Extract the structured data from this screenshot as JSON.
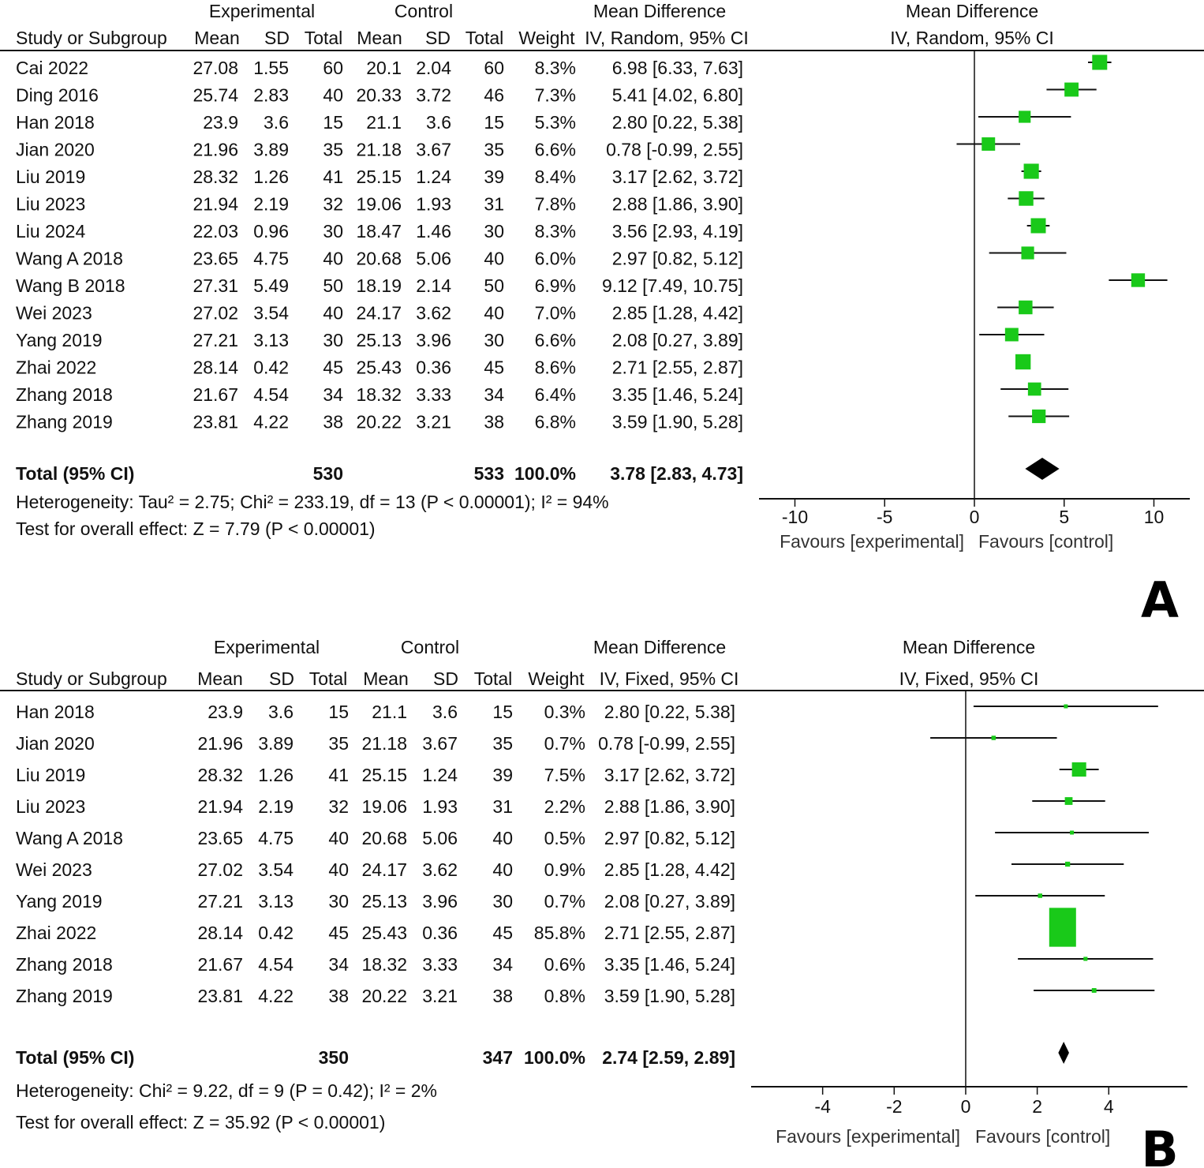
{
  "chart_data": [
    {
      "type": "forest",
      "panel_label": "A",
      "headers": {
        "group_experimental": "Experimental",
        "group_control": "Control",
        "md_group": "Mean Difference",
        "plot_title": "Mean Difference",
        "study": "Study or Subgroup",
        "mean": "Mean",
        "sd": "SD",
        "total": "Total",
        "weight": "Weight",
        "md_method": "IV, Random, 95% CI",
        "plot_method": "IV, Random, 95% CI"
      },
      "studies": [
        {
          "study": "Cai 2022",
          "e_mean": "27.08",
          "e_sd": "1.55",
          "e_total": "60",
          "c_mean": "20.1",
          "c_sd": "2.04",
          "c_total": "60",
          "weight": "8.3%",
          "md_text": "6.98 [6.33, 7.63]",
          "md": 6.98,
          "lo": 6.33,
          "hi": 7.63
        },
        {
          "study": "Ding 2016",
          "e_mean": "25.74",
          "e_sd": "2.83",
          "e_total": "40",
          "c_mean": "20.33",
          "c_sd": "3.72",
          "c_total": "46",
          "weight": "7.3%",
          "md_text": "5.41 [4.02, 6.80]",
          "md": 5.41,
          "lo": 4.02,
          "hi": 6.8
        },
        {
          "study": "Han 2018",
          "e_mean": "23.9",
          "e_sd": "3.6",
          "e_total": "15",
          "c_mean": "21.1",
          "c_sd": "3.6",
          "c_total": "15",
          "weight": "5.3%",
          "md_text": "2.80 [0.22, 5.38]",
          "md": 2.8,
          "lo": 0.22,
          "hi": 5.38
        },
        {
          "study": "Jian 2020",
          "e_mean": "21.96",
          "e_sd": "3.89",
          "e_total": "35",
          "c_mean": "21.18",
          "c_sd": "3.67",
          "c_total": "35",
          "weight": "6.6%",
          "md_text": "0.78 [-0.99, 2.55]",
          "md": 0.78,
          "lo": -0.99,
          "hi": 2.55
        },
        {
          "study": "Liu 2019",
          "e_mean": "28.32",
          "e_sd": "1.26",
          "e_total": "41",
          "c_mean": "25.15",
          "c_sd": "1.24",
          "c_total": "39",
          "weight": "8.4%",
          "md_text": "3.17 [2.62, 3.72]",
          "md": 3.17,
          "lo": 2.62,
          "hi": 3.72
        },
        {
          "study": "Liu 2023",
          "e_mean": "21.94",
          "e_sd": "2.19",
          "e_total": "32",
          "c_mean": "19.06",
          "c_sd": "1.93",
          "c_total": "31",
          "weight": "7.8%",
          "md_text": "2.88 [1.86, 3.90]",
          "md": 2.88,
          "lo": 1.86,
          "hi": 3.9
        },
        {
          "study": "Liu 2024",
          "e_mean": "22.03",
          "e_sd": "0.96",
          "e_total": "30",
          "c_mean": "18.47",
          "c_sd": "1.46",
          "c_total": "30",
          "weight": "8.3%",
          "md_text": "3.56 [2.93, 4.19]",
          "md": 3.56,
          "lo": 2.93,
          "hi": 4.19
        },
        {
          "study": "Wang A 2018",
          "e_mean": "23.65",
          "e_sd": "4.75",
          "e_total": "40",
          "c_mean": "20.68",
          "c_sd": "5.06",
          "c_total": "40",
          "weight": "6.0%",
          "md_text": "2.97 [0.82, 5.12]",
          "md": 2.97,
          "lo": 0.82,
          "hi": 5.12
        },
        {
          "study": "Wang B 2018",
          "e_mean": "27.31",
          "e_sd": "5.49",
          "e_total": "50",
          "c_mean": "18.19",
          "c_sd": "2.14",
          "c_total": "50",
          "weight": "6.9%",
          "md_text": "9.12 [7.49, 10.75]",
          "md": 9.12,
          "lo": 7.49,
          "hi": 10.75
        },
        {
          "study": "Wei 2023",
          "e_mean": "27.02",
          "e_sd": "3.54",
          "e_total": "40",
          "c_mean": "24.17",
          "c_sd": "3.62",
          "c_total": "40",
          "weight": "7.0%",
          "md_text": "2.85 [1.28, 4.42]",
          "md": 2.85,
          "lo": 1.28,
          "hi": 4.42
        },
        {
          "study": "Yang 2019",
          "e_mean": "27.21",
          "e_sd": "3.13",
          "e_total": "30",
          "c_mean": "25.13",
          "c_sd": "3.96",
          "c_total": "30",
          "weight": "6.6%",
          "md_text": "2.08 [0.27, 3.89]",
          "md": 2.08,
          "lo": 0.27,
          "hi": 3.89
        },
        {
          "study": "Zhai 2022",
          "e_mean": "28.14",
          "e_sd": "0.42",
          "e_total": "45",
          "c_mean": "25.43",
          "c_sd": "0.36",
          "c_total": "45",
          "weight": "8.6%",
          "md_text": "2.71 [2.55, 2.87]",
          "md": 2.71,
          "lo": 2.55,
          "hi": 2.87
        },
        {
          "study": "Zhang  2018",
          "e_mean": "21.67",
          "e_sd": "4.54",
          "e_total": "34",
          "c_mean": "18.32",
          "c_sd": "3.33",
          "c_total": "34",
          "weight": "6.4%",
          "md_text": "3.35 [1.46, 5.24]",
          "md": 3.35,
          "lo": 1.46,
          "hi": 5.24
        },
        {
          "study": "Zhang  2019",
          "e_mean": "23.81",
          "e_sd": "4.22",
          "e_total": "38",
          "c_mean": "20.22",
          "c_sd": "3.21",
          "c_total": "38",
          "weight": "6.8%",
          "md_text": "3.59 [1.90, 5.28]",
          "md": 3.59,
          "lo": 1.9,
          "hi": 5.28
        }
      ],
      "total": {
        "label": "Total (95% CI)",
        "e_total": "530",
        "c_total": "533",
        "weight": "100.0%",
        "md_text": "3.78 [2.83, 4.73]",
        "md": 3.78,
        "lo": 2.83,
        "hi": 4.73
      },
      "heterogeneity": "Heterogeneity: Tau² = 2.75; Chi² = 233.19, df = 13 (P < 0.00001); I² = 94%",
      "overall_effect": "Test for overall effect: Z = 7.79 (P < 0.00001)",
      "axis": {
        "xlim": [
          -12,
          12
        ],
        "ticks": [
          -10,
          -5,
          0,
          5,
          10
        ],
        "tick_labels": [
          "-10",
          "-5",
          "0",
          "5",
          "10"
        ],
        "favours_left": "Favours [experimental]",
        "favours_right": "Favours [control]"
      },
      "marker_color": "#19c919",
      "line_color": "#111111"
    },
    {
      "type": "forest",
      "panel_label": "B",
      "headers": {
        "group_experimental": "Experimental",
        "group_control": "Control",
        "md_group": "Mean Difference",
        "plot_title": "Mean Difference",
        "study": "Study or Subgroup",
        "mean": "Mean",
        "sd": "SD",
        "total": "Total",
        "weight": "Weight",
        "md_method": "IV, Fixed, 95% CI",
        "plot_method": "IV, Fixed, 95% CI"
      },
      "studies": [
        {
          "study": "Han 2018",
          "e_mean": "23.9",
          "e_sd": "3.6",
          "e_total": "15",
          "c_mean": "21.1",
          "c_sd": "3.6",
          "c_total": "15",
          "weight": "0.3%",
          "md_text": "2.80 [0.22, 5.38]",
          "md": 2.8,
          "lo": 0.22,
          "hi": 5.38
        },
        {
          "study": "Jian 2020",
          "e_mean": "21.96",
          "e_sd": "3.89",
          "e_total": "35",
          "c_mean": "21.18",
          "c_sd": "3.67",
          "c_total": "35",
          "weight": "0.7%",
          "md_text": "0.78 [-0.99, 2.55]",
          "md": 0.78,
          "lo": -0.99,
          "hi": 2.55
        },
        {
          "study": "Liu 2019",
          "e_mean": "28.32",
          "e_sd": "1.26",
          "e_total": "41",
          "c_mean": "25.15",
          "c_sd": "1.24",
          "c_total": "39",
          "weight": "7.5%",
          "md_text": "3.17 [2.62, 3.72]",
          "md": 3.17,
          "lo": 2.62,
          "hi": 3.72
        },
        {
          "study": "Liu 2023",
          "e_mean": "21.94",
          "e_sd": "2.19",
          "e_total": "32",
          "c_mean": "19.06",
          "c_sd": "1.93",
          "c_total": "31",
          "weight": "2.2%",
          "md_text": "2.88 [1.86, 3.90]",
          "md": 2.88,
          "lo": 1.86,
          "hi": 3.9
        },
        {
          "study": "Wang A 2018",
          "e_mean": "23.65",
          "e_sd": "4.75",
          "e_total": "40",
          "c_mean": "20.68",
          "c_sd": "5.06",
          "c_total": "40",
          "weight": "0.5%",
          "md_text": "2.97 [0.82, 5.12]",
          "md": 2.97,
          "lo": 0.82,
          "hi": 5.12
        },
        {
          "study": "Wei 2023",
          "e_mean": "27.02",
          "e_sd": "3.54",
          "e_total": "40",
          "c_mean": "24.17",
          "c_sd": "3.62",
          "c_total": "40",
          "weight": "0.9%",
          "md_text": "2.85 [1.28, 4.42]",
          "md": 2.85,
          "lo": 1.28,
          "hi": 4.42
        },
        {
          "study": "Yang 2019",
          "e_mean": "27.21",
          "e_sd": "3.13",
          "e_total": "30",
          "c_mean": "25.13",
          "c_sd": "3.96",
          "c_total": "30",
          "weight": "0.7%",
          "md_text": "2.08 [0.27, 3.89]",
          "md": 2.08,
          "lo": 0.27,
          "hi": 3.89
        },
        {
          "study": "Zhai 2022",
          "e_mean": "28.14",
          "e_sd": "0.42",
          "e_total": "45",
          "c_mean": "25.43",
          "c_sd": "0.36",
          "c_total": "45",
          "weight": "85.8%",
          "md_text": "2.71 [2.55, 2.87]",
          "md": 2.71,
          "lo": 2.55,
          "hi": 2.87
        },
        {
          "study": "Zhang  2018",
          "e_mean": "21.67",
          "e_sd": "4.54",
          "e_total": "34",
          "c_mean": "18.32",
          "c_sd": "3.33",
          "c_total": "34",
          "weight": "0.6%",
          "md_text": "3.35 [1.46, 5.24]",
          "md": 3.35,
          "lo": 1.46,
          "hi": 5.24
        },
        {
          "study": "Zhang  2019",
          "e_mean": "23.81",
          "e_sd": "4.22",
          "e_total": "38",
          "c_mean": "20.22",
          "c_sd": "3.21",
          "c_total": "38",
          "weight": "0.8%",
          "md_text": "3.59 [1.90, 5.28]",
          "md": 3.59,
          "lo": 1.9,
          "hi": 5.28
        }
      ],
      "total": {
        "label": "Total (95% CI)",
        "e_total": "350",
        "c_total": "347",
        "weight": "100.0%",
        "md_text": "2.74 [2.59, 2.89]",
        "md": 2.74,
        "lo": 2.59,
        "hi": 2.89
      },
      "heterogeneity": "Heterogeneity: Chi² = 9.22, df = 9 (P = 0.42); I² = 2%",
      "overall_effect": "Test for overall effect: Z = 35.92 (P < 0.00001)",
      "axis": {
        "xlim": [
          -6,
          6.2
        ],
        "ticks": [
          -4,
          -2,
          0,
          2,
          4
        ],
        "tick_labels": [
          "-4",
          "-2",
          "0",
          "2",
          "4"
        ],
        "favours_left": "Favours [experimental]",
        "favours_right": "Favours [control]"
      },
      "marker_color": "#19c919",
      "line_color": "#111111"
    }
  ]
}
